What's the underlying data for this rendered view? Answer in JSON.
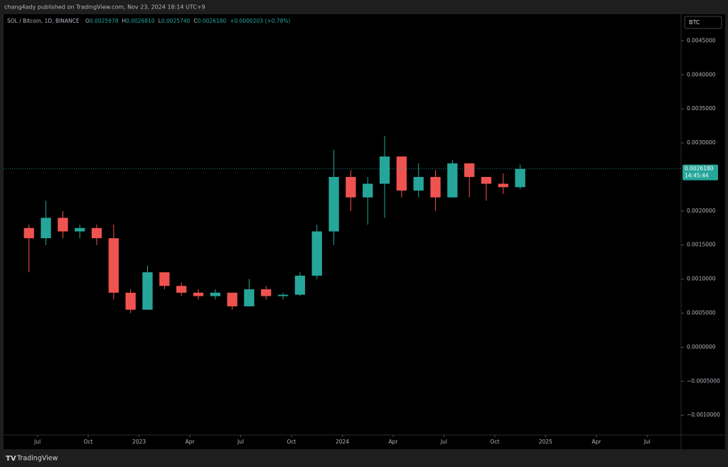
{
  "header": {
    "published": "chang4ady published on TradingView.com, Nov 23, 2024 18:14 UTC+9"
  },
  "footer": {
    "logo": "TradingView"
  },
  "chart_data": {
    "type": "candlestick",
    "title": "SOL / Bitcoin, 1D, BINANCE",
    "legend_values": [
      {
        "key": "O",
        "value": "0.0025978"
      },
      {
        "key": "H",
        "value": "0.0026810"
      },
      {
        "key": "L",
        "value": "0.0025740"
      },
      {
        "key": "C",
        "value": "0.0026180"
      }
    ],
    "change": "+0.0000203 (+0.78%)",
    "currency_button": "BTC",
    "last_price": {
      "value": 0.002618,
      "label": "0.0026180"
    },
    "countdown": "14:45:44",
    "up_color": "#26a69a",
    "down_color": "#ef5350",
    "x": [
      "2022-06",
      "2022-07",
      "2022-08",
      "2022-09",
      "2022-10",
      "2022-11",
      "2022-12",
      "2023-01",
      "2023-02",
      "2023-03",
      "2023-04",
      "2023-05",
      "2023-06",
      "2023-07",
      "2023-08",
      "2023-09",
      "2023-10",
      "2023-11",
      "2023-12",
      "2024-01",
      "2024-02",
      "2024-03",
      "2024-04",
      "2024-05",
      "2024-06",
      "2024-07",
      "2024-08",
      "2024-09",
      "2024-10",
      "2024-11"
    ],
    "open": [
      0.00175,
      0.0016,
      0.0019,
      0.0017,
      0.00175,
      0.0016,
      0.0008,
      0.00055,
      0.0011,
      0.0009,
      0.0008,
      0.00075,
      0.0008,
      0.0006,
      0.00085,
      0.00075,
      0.00077,
      0.00105,
      0.0017,
      0.0025,
      0.0022,
      0.0024,
      0.0028,
      0.0023,
      0.0025,
      0.0022,
      0.0027,
      0.0025,
      0.0024,
      0.00235
    ],
    "high": [
      0.0018,
      0.00215,
      0.002,
      0.0018,
      0.0018,
      0.0018,
      0.00085,
      0.0012,
      0.0011,
      0.00095,
      0.00085,
      0.00085,
      0.0008,
      0.001,
      0.0009,
      0.0008,
      0.0011,
      0.0018,
      0.0029,
      0.0026,
      0.0025,
      0.0031,
      0.0028,
      0.0027,
      0.0026,
      0.00275,
      0.0027,
      0.0025,
      0.00255,
      0.002681
    ],
    "low": [
      0.0011,
      0.0015,
      0.0016,
      0.0016,
      0.0015,
      0.0007,
      0.0005,
      0.00055,
      0.00085,
      0.00075,
      0.0007,
      0.0007,
      0.00055,
      0.0006,
      0.0007,
      0.0007,
      0.00075,
      0.001,
      0.0015,
      0.002,
      0.0018,
      0.0019,
      0.0022,
      0.0022,
      0.002,
      0.0022,
      0.0022,
      0.00215,
      0.00225,
      0.00232
    ],
    "close": [
      0.0016,
      0.0019,
      0.0017,
      0.00175,
      0.0016,
      0.0008,
      0.00055,
      0.0011,
      0.0009,
      0.0008,
      0.00075,
      0.0008,
      0.0006,
      0.00085,
      0.00075,
      0.00077,
      0.00105,
      0.0017,
      0.0025,
      0.0022,
      0.0024,
      0.0028,
      0.0023,
      0.0025,
      0.0022,
      0.0027,
      0.0025,
      0.0024,
      0.00235,
      0.002618
    ],
    "xlim": [
      "2022-05",
      "2025-09"
    ],
    "xticks": [
      {
        "value": "2022-07",
        "label": "Jul"
      },
      {
        "value": "2022-10",
        "label": "Oct"
      },
      {
        "value": "2023-01",
        "label": "2023"
      },
      {
        "value": "2023-04",
        "label": "Apr"
      },
      {
        "value": "2023-07",
        "label": "Jul"
      },
      {
        "value": "2023-10",
        "label": "Oct"
      },
      {
        "value": "2024-01",
        "label": "2024"
      },
      {
        "value": "2024-04",
        "label": "Apr"
      },
      {
        "value": "2024-07",
        "label": "Jul"
      },
      {
        "value": "2024-10",
        "label": "Oct"
      },
      {
        "value": "2025-01",
        "label": "2025"
      },
      {
        "value": "2025-04",
        "label": "Apr"
      },
      {
        "value": "2025-07",
        "label": "Jul"
      }
    ],
    "ylim": [
      -0.00129,
      0.00489
    ],
    "yticks": [
      {
        "value": 0.0045,
        "label": "0.0045000"
      },
      {
        "value": 0.004,
        "label": "0.0040000"
      },
      {
        "value": 0.0035,
        "label": "0.0035000"
      },
      {
        "value": 0.003,
        "label": "0.0030000"
      },
      {
        "value": 0.002,
        "label": "0.0020000"
      },
      {
        "value": 0.0015,
        "label": "0.0015000"
      },
      {
        "value": 0.001,
        "label": "0.0010000"
      },
      {
        "value": 0.0005,
        "label": "0.0005000"
      },
      {
        "value": 0,
        "label": "0.0000000"
      },
      {
        "value": -0.0005,
        "label": "−0.0005000"
      },
      {
        "value": -0.001,
        "label": "−0.0010000"
      }
    ]
  }
}
